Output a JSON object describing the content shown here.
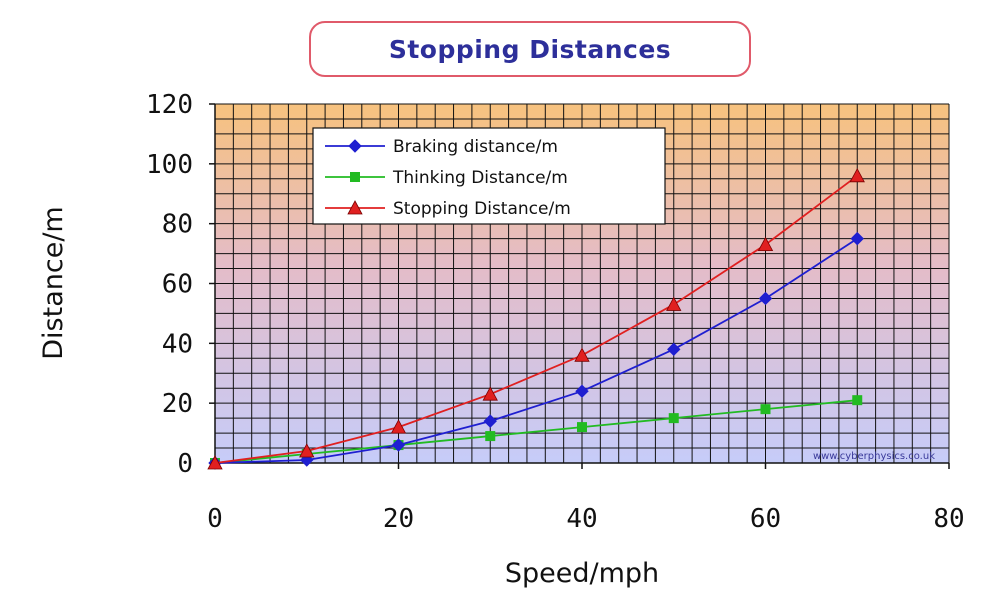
{
  "chart_data": {
    "type": "line",
    "title": "Stopping Distances",
    "xlabel": "Speed/mph",
    "ylabel": "Distance/m",
    "xlim": [
      0,
      80
    ],
    "ylim": [
      0,
      120
    ],
    "xticks": [
      0,
      20,
      40,
      60,
      80
    ],
    "yticks": [
      0,
      20,
      40,
      60,
      80,
      100,
      120
    ],
    "grid": true,
    "legend_position": "top-left",
    "watermark": "www.cyberphysics.co.uk",
    "series": [
      {
        "name": "Braking distance/m",
        "color": "#1f1fd0",
        "marker": "diamond",
        "x": [
          0,
          10,
          20,
          30,
          40,
          50,
          60,
          70
        ],
        "values": [
          0,
          1,
          6,
          14,
          24,
          38,
          55,
          75
        ]
      },
      {
        "name": "Thinking Distance/m",
        "color": "#22bb22",
        "marker": "square",
        "x": [
          0,
          10,
          20,
          30,
          40,
          50,
          60,
          70
        ],
        "values": [
          0,
          3,
          6,
          9,
          12,
          15,
          18,
          21
        ]
      },
      {
        "name": "Stopping Distance/m",
        "color": "#e02020",
        "marker": "triangle",
        "x": [
          0,
          10,
          20,
          30,
          40,
          50,
          60,
          70
        ],
        "values": [
          0,
          4,
          12,
          23,
          36,
          53,
          73,
          96
        ]
      }
    ]
  }
}
